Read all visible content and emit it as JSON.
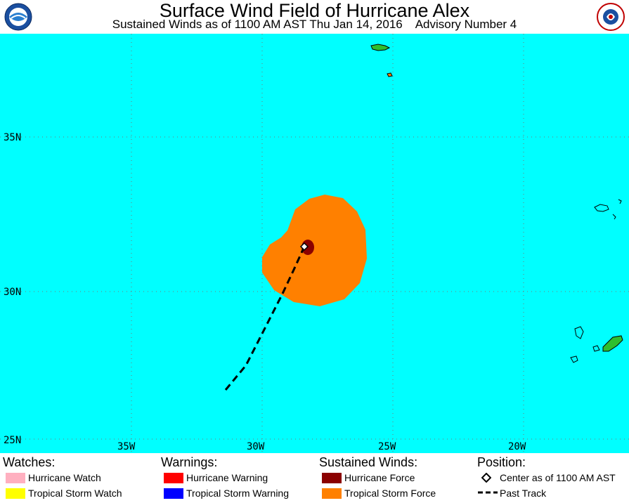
{
  "header": {
    "title": "Surface Wind Field of Hurricane Alex",
    "subtitle": "Sustained Winds as of 1100 AM AST Thu Jan 14, 2016    Advisory Number 4"
  },
  "map": {
    "ocean_color": "#00FFFF",
    "land_color": "#2EBF2E",
    "tropical_storm_force_color": "#FF8000",
    "hurricane_force_color": "#8B0000",
    "lat_labels": [
      "35N",
      "30N",
      "25N"
    ],
    "lon_labels": [
      "35W",
      "30W",
      "25W",
      "20W"
    ]
  },
  "legend": {
    "watches": {
      "heading": "Watches:",
      "items": [
        {
          "label": "Hurricane Watch",
          "color": "#FFB0C0"
        },
        {
          "label": "Tropical Storm Watch",
          "color": "#FFFF00"
        }
      ]
    },
    "warnings": {
      "heading": "Warnings:",
      "items": [
        {
          "label": "Hurricane Warning",
          "color": "#FF0000"
        },
        {
          "label": "Tropical Storm Warning",
          "color": "#0000FF"
        }
      ]
    },
    "winds": {
      "heading": "Sustained Winds:",
      "items": [
        {
          "label": "Hurricane Force",
          "color": "#8B0000"
        },
        {
          "label": "Tropical Storm Force",
          "color": "#FF8000"
        }
      ]
    },
    "position": {
      "heading": "Position:",
      "items": [
        {
          "label": "Center as of 1100 AM AST",
          "icon": "diamond-icon"
        },
        {
          "label": "Past Track",
          "icon": "dashed-line-icon"
        }
      ]
    }
  }
}
